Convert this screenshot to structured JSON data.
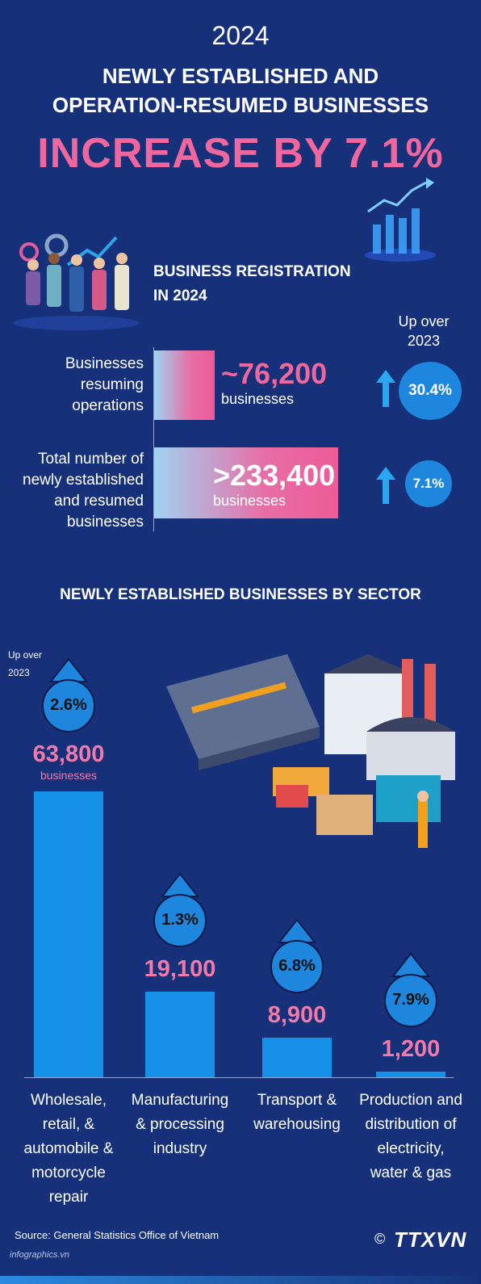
{
  "header": {
    "year": "2024",
    "title_line1": "NEWLY ESTABLISHED AND",
    "title_line2": "OPERATION-RESUMED BUSINESSES",
    "headline": "INCREASE BY 7.1%"
  },
  "registration": {
    "title_line1": "BUSINESS REGISTRATION",
    "title_line2": "IN 2024",
    "change_label_line1": "Up over",
    "change_label_line2": "2023",
    "rows": [
      {
        "label": [
          "Businesses",
          "resuming",
          "operations"
        ],
        "value": "~76,200",
        "unit": "businesses",
        "change": "30.4%",
        "fraction": 0.33
      },
      {
        "label": [
          "Total number of",
          "newly established",
          "and resumed",
          "businesses"
        ],
        "value": ">233,400",
        "unit": "businesses",
        "change": "7.1%",
        "fraction": 1.0
      }
    ]
  },
  "chart_data": {
    "type": "bar",
    "title": "NEWLY ESTABLISHED BUSINESSES BY SECTOR",
    "categories": [
      "Wholesale, retail, & automobile & motorcycle repair",
      "Manufacturing & processing industry",
      "Transport & warehousing",
      "Production and distribution of electricity, water & gas"
    ],
    "values": [
      63800,
      19100,
      8900,
      1200
    ],
    "value_labels": [
      "63,800",
      "19,100",
      "8,900",
      "1,200"
    ],
    "unit_label": "businesses",
    "change_label_line1": "Up over",
    "change_label_line2": "2023",
    "changes": [
      "2.6%",
      "1.3%",
      "6.8%",
      "7.9%"
    ],
    "ylim": [
      0,
      63800
    ],
    "category_lines": [
      [
        "Wholesale,",
        "retail, &",
        "automobile &",
        "motorcycle",
        "repair"
      ],
      [
        "Manufacturing",
        "& processing",
        "industry"
      ],
      [
        "Transport &",
        "warehousing"
      ],
      [
        "Production and",
        "distribution of",
        "electricity,",
        "water & gas"
      ]
    ]
  },
  "footer": {
    "source": "Source: General Statistics Office of Vietnam",
    "site": "infographics.vn",
    "copyright": "©",
    "brand": "TTXVN"
  },
  "colors": {
    "background": "#16317a",
    "accent_pink": "#f0679e",
    "bar_blue": "#1592e8",
    "circle_blue": "#1f86dd"
  }
}
